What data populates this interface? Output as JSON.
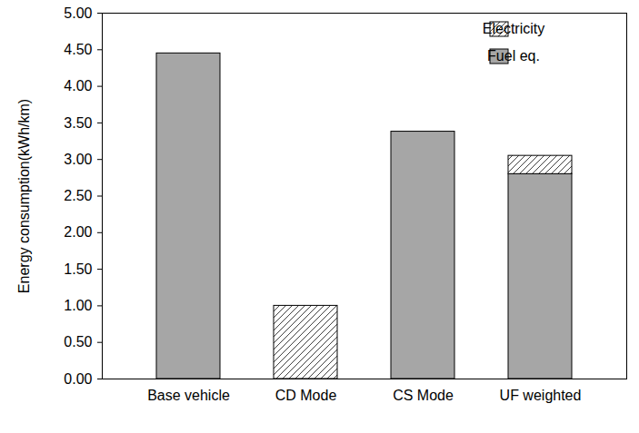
{
  "chart_data": {
    "type": "bar",
    "stacked": true,
    "y_label": "Energy consumption(kWh/km)",
    "categories": [
      "Base vehicle",
      "CD Mode",
      "CS Mode",
      "UF weighted"
    ],
    "series": [
      {
        "name": "Fuel eq.",
        "color": "#a6a6a6",
        "values": [
          4.45,
          0,
          3.38,
          2.8
        ]
      },
      {
        "name": "Electricity",
        "color": "#404040",
        "line_style": "hatch",
        "values": [
          0,
          1.0,
          0,
          0.25
        ]
      }
    ],
    "ylim": [
      0,
      5
    ],
    "yticks": [
      {
        "value": 0,
        "label": "0.00"
      },
      {
        "value": 0.5,
        "label": "0.50"
      },
      {
        "value": 1,
        "label": "1.00"
      },
      {
        "value": 1.5,
        "label": "1.50"
      },
      {
        "value": 2,
        "label": "2.00"
      },
      {
        "value": 2.5,
        "label": "2.50"
      },
      {
        "value": 3,
        "label": "3.00"
      },
      {
        "value": 3.5,
        "label": "3.50"
      },
      {
        "value": 4,
        "label": "4.00"
      },
      {
        "value": 4.5,
        "label": "4.50"
      },
      {
        "value": 5,
        "label": "5.00"
      }
    ],
    "grid": false,
    "legend": "top-right"
  }
}
